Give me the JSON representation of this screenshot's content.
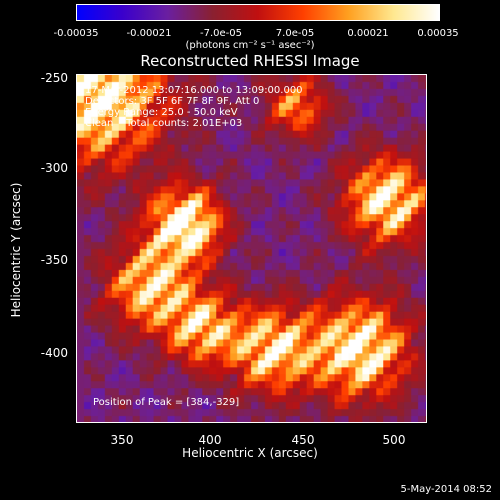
{
  "colorbar": {
    "ticks": [
      "-0.00035",
      "-0.00021",
      "-7.0e-05",
      "7.0e-05",
      "0.00021",
      "0.00035"
    ],
    "units": "(photons cm⁻² s⁻¹ asec⁻²)",
    "colors": [
      "#0000ff",
      "#3a00cc",
      "#6a1fa0",
      "#8a2030",
      "#c01010",
      "#ff4000",
      "#ffa020",
      "#ffe890",
      "#ffffff"
    ]
  },
  "image": {
    "title": "Reconstructed RHESSI Image",
    "info_lines": [
      "17-Mar-2012 13:07:16.000 to 13:09:00.000",
      "Detectors: 3F 5F 6F 7F 8F 9F, Att 0",
      "Energy Range: 25.0 - 50.0 keV",
      "Clean    Total counts: 2.01E+03"
    ],
    "peak_text": "Position of Peak = [384,-329]"
  },
  "axes": {
    "xlabel": "Heliocentric X (arcsec)",
    "ylabel": "Heliocentric Y (arcsec)",
    "xticks": [
      "350",
      "400",
      "450",
      "500"
    ],
    "yticks": [
      "-250",
      "-300",
      "-350",
      "-400"
    ]
  },
  "footer": {
    "date": "5-May-2014 08:52"
  }
}
